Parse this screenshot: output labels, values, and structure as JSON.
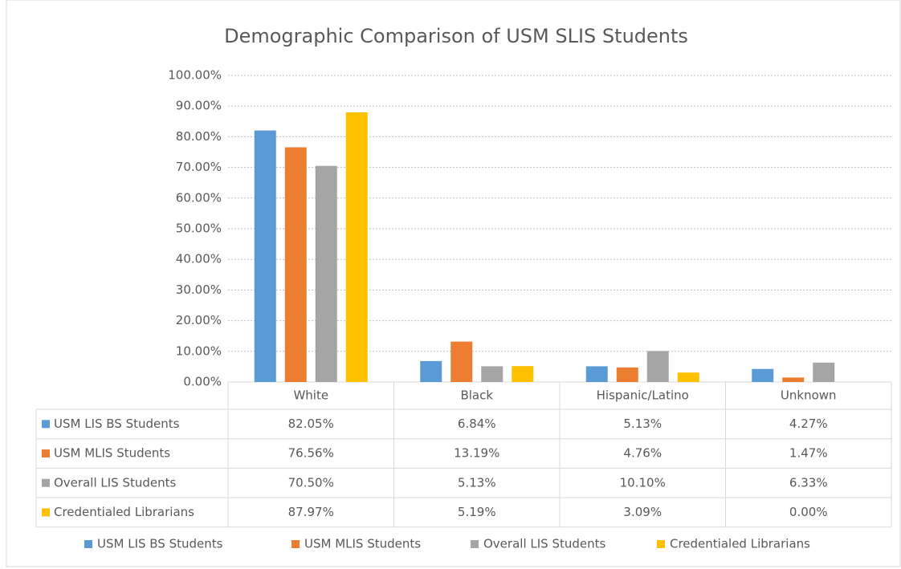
{
  "chart_data": {
    "type": "bar",
    "title": "Demographic Comparison of USM SLIS Students",
    "categories": [
      "White",
      "Black",
      "Hispanic/Latino",
      "Unknown"
    ],
    "series": [
      {
        "name": "USM LIS BS Students",
        "color": "#5b9bd5",
        "values": [
          82.05,
          6.84,
          5.13,
          4.27
        ],
        "value_labels": [
          "82.05%",
          "6.84%",
          "5.13%",
          "4.27%"
        ]
      },
      {
        "name": "USM MLIS Students",
        "color": "#ed7d31",
        "values": [
          76.56,
          13.19,
          4.76,
          1.47
        ],
        "value_labels": [
          "76.56%",
          "13.19%",
          "4.76%",
          "1.47%"
        ]
      },
      {
        "name": "Overall LIS Students",
        "color": "#a5a5a5",
        "values": [
          70.5,
          5.13,
          10.1,
          6.33
        ],
        "value_labels": [
          "70.50%",
          "5.13%",
          "10.10%",
          "6.33%"
        ]
      },
      {
        "name": "Credentialed Librarians",
        "color": "#ffc000",
        "values": [
          87.97,
          5.19,
          3.09,
          0
        ],
        "value_labels": [
          "87.97%",
          "5.19%",
          "3.09%",
          "0.00%"
        ]
      }
    ],
    "ylim": [
      0,
      100
    ],
    "yticks": [
      {
        "value": 0,
        "label": "0.00%"
      },
      {
        "value": 10,
        "label": "10.00%"
      },
      {
        "value": 20,
        "label": "20.00%"
      },
      {
        "value": 30,
        "label": "30.00%"
      },
      {
        "value": 40,
        "label": "40.00%"
      },
      {
        "value": 50,
        "label": "50.00%"
      },
      {
        "value": 60,
        "label": "60.00%"
      },
      {
        "value": 70,
        "label": "70.00%"
      },
      {
        "value": 80,
        "label": "80.00%"
      },
      {
        "value": 90,
        "label": "90.00%"
      },
      {
        "value": 100,
        "label": "100.00%"
      }
    ],
    "grid": true,
    "legend": "bottom"
  }
}
